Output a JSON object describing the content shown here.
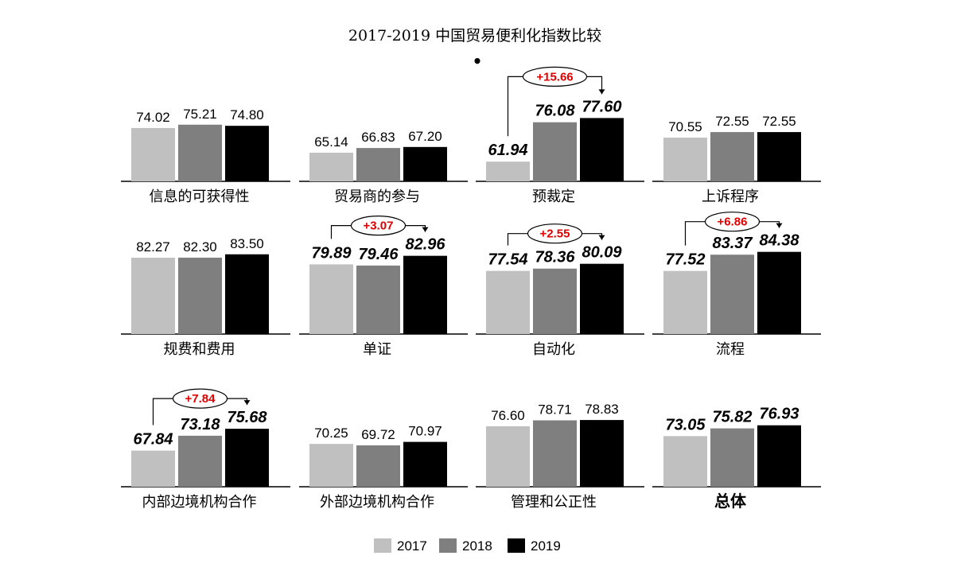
{
  "chart_data": {
    "type": "bar",
    "title": "2017-2019 中国贸易便利化指数比较",
    "subtitle_mark": "•",
    "colors": {
      "2017": "#c0c0c0",
      "2018": "#7f7f7f",
      "2019": "#000000",
      "delta": "#e00000"
    },
    "legend": {
      "placement": "bottom",
      "entries": [
        "2017",
        "2018",
        "2019"
      ]
    },
    "panels": [
      {
        "category": "信息的可获得性",
        "values": [
          74.02,
          75.21,
          74.8
        ],
        "labels": [
          "74.02",
          "75.21",
          "74.80"
        ],
        "emphasis": false,
        "delta": null
      },
      {
        "category": "贸易商的参与",
        "values": [
          65.14,
          66.83,
          67.2
        ],
        "labels": [
          "65.14",
          "66.83",
          "67.20"
        ],
        "emphasis": false,
        "delta": null
      },
      {
        "category": "预裁定",
        "values": [
          61.94,
          76.08,
          77.6
        ],
        "labels": [
          "61.94",
          "76.08",
          "77.60"
        ],
        "emphasis": true,
        "delta": "+15.66"
      },
      {
        "category": "上诉程序",
        "values": [
          70.55,
          72.55,
          72.55
        ],
        "labels": [
          "70.55",
          "72.55",
          "72.55"
        ],
        "emphasis": false,
        "delta": null
      },
      {
        "category": "规费和费用",
        "values": [
          82.27,
          82.3,
          83.5
        ],
        "labels": [
          "82.27",
          "82.30",
          "83.50"
        ],
        "emphasis": false,
        "delta": null
      },
      {
        "category": "单证",
        "values": [
          79.89,
          79.46,
          82.96
        ],
        "labels": [
          "79.89",
          "79.46",
          "82.96"
        ],
        "emphasis": true,
        "delta": "+3.07"
      },
      {
        "category": "自动化",
        "values": [
          77.54,
          78.36,
          80.09
        ],
        "labels": [
          "77.54",
          "78.36",
          "80.09"
        ],
        "emphasis": true,
        "delta": "+2.55"
      },
      {
        "category": "流程",
        "values": [
          77.52,
          83.37,
          84.38
        ],
        "labels": [
          "77.52",
          "83.37",
          "84.38"
        ],
        "emphasis": true,
        "delta": "+6.86"
      },
      {
        "category": "内部边境机构合作",
        "values": [
          67.84,
          73.18,
          75.68
        ],
        "labels": [
          "67.84",
          "73.18",
          "75.68"
        ],
        "emphasis": true,
        "delta": "+7.84"
      },
      {
        "category": "外部边境机构合作",
        "values": [
          70.25,
          69.72,
          70.97
        ],
        "labels": [
          "70.25",
          "69.72",
          "70.97"
        ],
        "emphasis": false,
        "delta": null
      },
      {
        "category": "管理和公正性",
        "values": [
          76.6,
          78.71,
          78.83
        ],
        "labels": [
          "76.60",
          "78.71",
          "78.83"
        ],
        "emphasis": false,
        "delta": null
      },
      {
        "category": "总体",
        "values": [
          73.05,
          75.82,
          76.93
        ],
        "labels": [
          "73.05",
          "75.82",
          "76.93"
        ],
        "emphasis": true,
        "delta": null,
        "category_bold": true
      }
    ]
  }
}
